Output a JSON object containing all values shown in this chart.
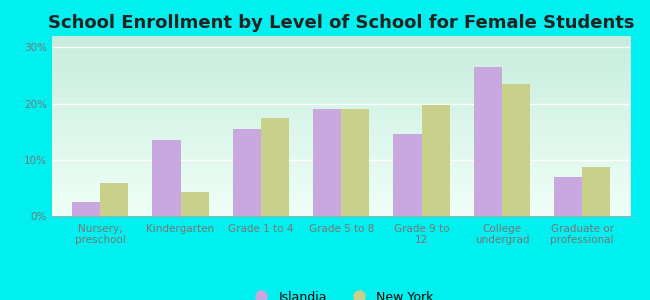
{
  "title": "School Enrollment by Level of School for Female Students",
  "categories": [
    "Nursery,\npreschool",
    "Kindergarten",
    "Grade 1 to 4",
    "Grade 5 to 8",
    "Grade 9 to\n12",
    "College\nundergrad",
    "Graduate or\nprofessional"
  ],
  "islandia": [
    2.5,
    13.5,
    15.5,
    19.0,
    14.5,
    26.5,
    7.0
  ],
  "new_york": [
    5.8,
    4.2,
    17.5,
    19.0,
    19.8,
    23.5,
    8.8
  ],
  "islandia_color": "#c9a8e0",
  "new_york_color": "#c8d08a",
  "background_color": "#00f0f0",
  "plot_bg_top": "#c8eedd",
  "plot_bg_bottom": "#f0fff8",
  "ylim": [
    0,
    32
  ],
  "yticks": [
    0,
    10,
    20,
    30
  ],
  "ytick_labels": [
    "0%",
    "10%",
    "20%",
    "30%"
  ],
  "legend_islandia": "Islandia",
  "legend_new_york": "New York",
  "bar_width": 0.35,
  "title_fontsize": 13,
  "tick_fontsize": 7.5,
  "legend_fontsize": 9
}
